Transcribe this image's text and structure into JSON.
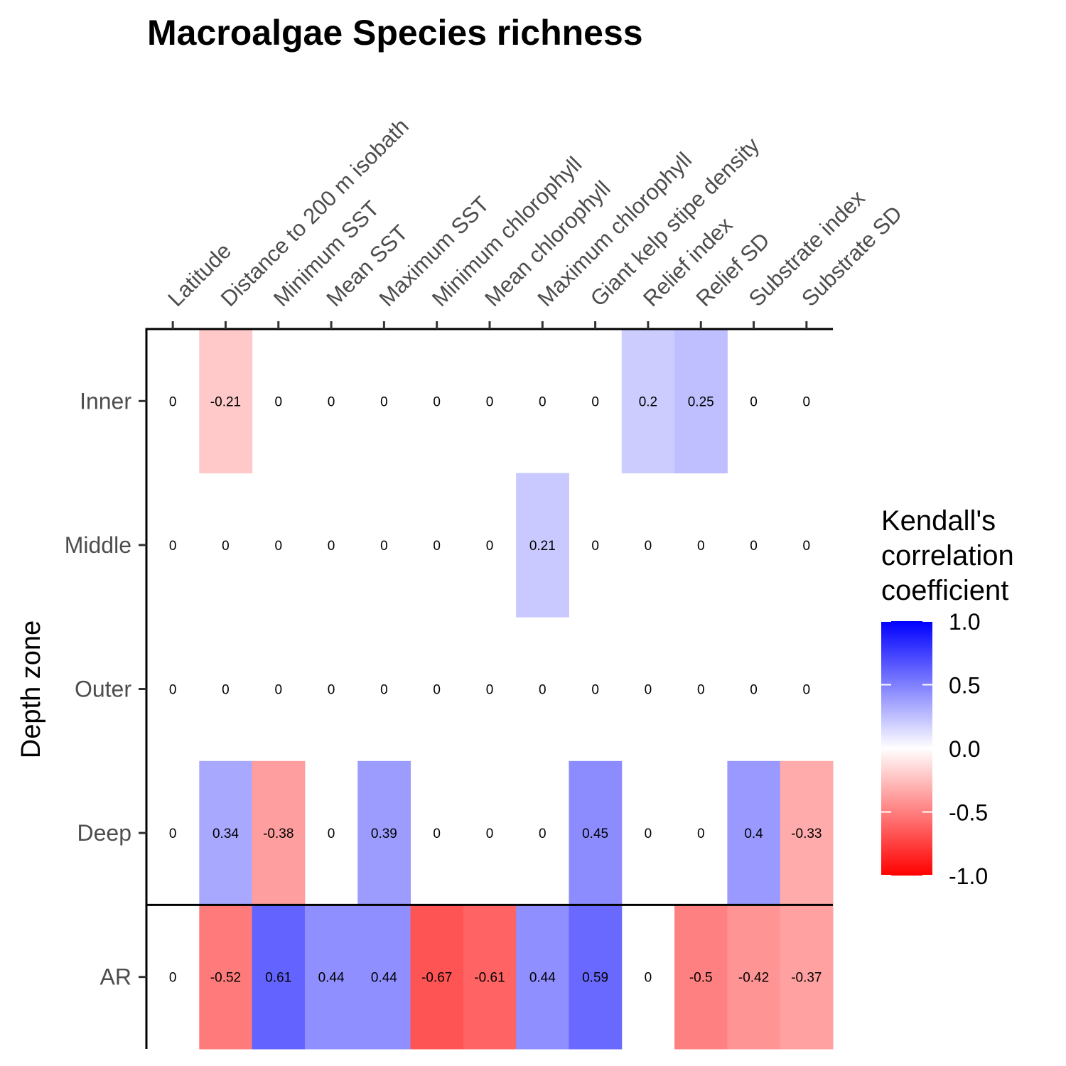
{
  "chart_data": {
    "type": "heatmap",
    "title": "Macroalgae  Species richness",
    "ylabel": "Depth zone",
    "columns": [
      "Latitude",
      "Distance to 200 m isobath",
      "Minimum SST",
      "Mean SST",
      "Maximum SST",
      "Minimum chlorophyll",
      "Mean chlorophyll",
      "Maximum chlorophyll",
      "Giant kelp stipe density",
      "Relief index",
      "Relief SD",
      "Substrate index",
      "Substrate SD"
    ],
    "rows": [
      "Inner",
      "Middle",
      "Outer",
      "Deep",
      "AR"
    ],
    "values": [
      [
        0,
        -0.21,
        0,
        0,
        0,
        0,
        0,
        0,
        0,
        0.2,
        0.25,
        0,
        0
      ],
      [
        0,
        0,
        0,
        0,
        0,
        0,
        0,
        0.21,
        0,
        0,
        0,
        0,
        0
      ],
      [
        0,
        0,
        0,
        0,
        0,
        0,
        0,
        0,
        0,
        0,
        0,
        0,
        0
      ],
      [
        0,
        0.34,
        -0.38,
        0,
        0.39,
        0,
        0,
        0,
        0.45,
        0,
        0,
        0.4,
        -0.33
      ],
      [
        0,
        -0.52,
        0.61,
        0.44,
        0.44,
        -0.67,
        -0.61,
        0.44,
        0.59,
        0,
        -0.5,
        -0.42,
        -0.37
      ]
    ],
    "legend": {
      "title_lines": [
        "Kendall's",
        "correlation",
        "coefficient"
      ],
      "ticks": [
        "1.0",
        "0.5",
        "0.0",
        "-0.5",
        "-1.0"
      ],
      "tick_values": [
        1.0,
        0.5,
        0.0,
        -0.5,
        -1.0
      ],
      "range": [
        -1,
        1
      ],
      "placement": "right"
    },
    "colors": {
      "negative": "#ff0000",
      "neutral": "#ffffff",
      "positive": "#0000ff"
    },
    "x_axis_position": "top",
    "separator_before_row": "AR"
  }
}
